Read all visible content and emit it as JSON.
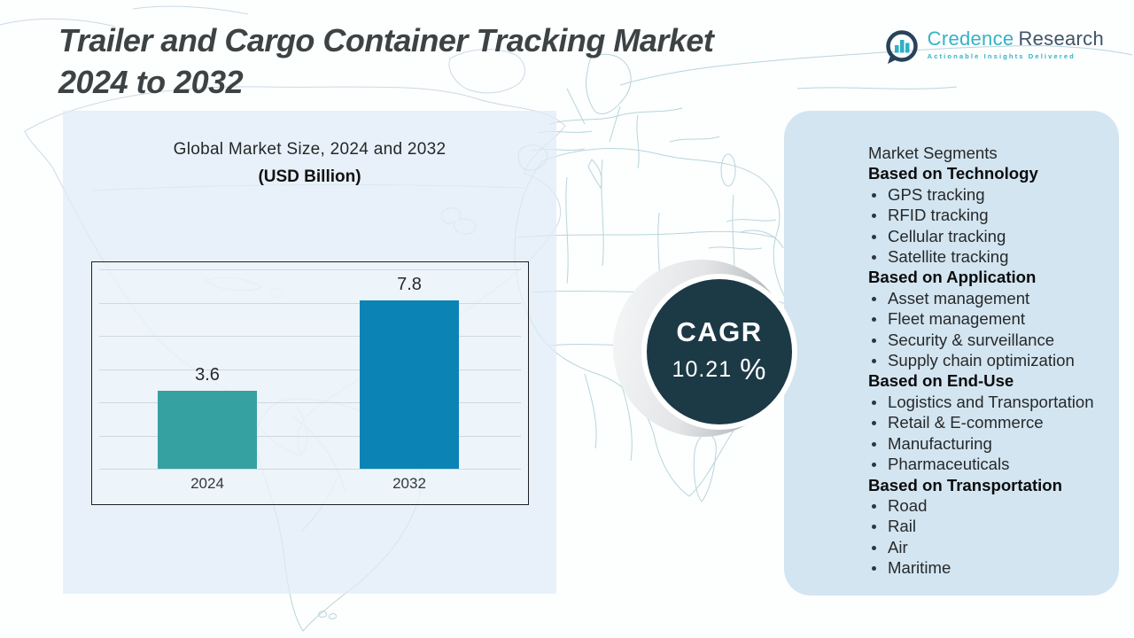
{
  "header": {
    "title_line1": "Trailer and Cargo Container Tracking Market",
    "title_line2": "2024 to 2032",
    "logo": {
      "brand_primary": "Credence",
      "brand_secondary": "Research",
      "tagline": "Actionable Insights Delivered",
      "icon": "bar-chart-circle-icon",
      "brand_primary_color": "#35b2c4",
      "brand_secondary_color": "#3f5468",
      "tagline_color": "#35b2c4",
      "icon_ring_color": "#27435a",
      "icon_bar_color": "#2fb0c4"
    }
  },
  "chart_data": {
    "type": "bar",
    "title": "Global Market Size, 2024 and 2032",
    "subtitle": "(USD Billion)",
    "categories": [
      "2024",
      "2032"
    ],
    "values": [
      3.6,
      7.8
    ],
    "value_labels": [
      "3.6",
      "7.8"
    ],
    "bar_colors": [
      "#36a1a1",
      "#0b84b5"
    ],
    "ylabel": "",
    "xlabel": "",
    "ylim": [
      0,
      8
    ],
    "grid": true,
    "legend": "none"
  },
  "cagr": {
    "label": "CAGR",
    "value": "10.21",
    "unit": "%",
    "circle_color": "#1c3946"
  },
  "segments": {
    "title": "Market Segments",
    "groups": [
      {
        "heading": "Based on Technology",
        "items": [
          "GPS tracking",
          "RFID tracking",
          "Cellular tracking",
          "Satellite tracking"
        ]
      },
      {
        "heading": "Based on Application",
        "items": [
          "Asset management",
          "Fleet management",
          "Security & surveillance",
          "Supply chain optimization"
        ]
      },
      {
        "heading": "Based on End-Use",
        "items": [
          "Logistics and Transportation",
          "Retail & E-commerce",
          "Manufacturing",
          "Pharmaceuticals"
        ]
      },
      {
        "heading": "Based on Transportation",
        "items": [
          "Road",
          "Rail",
          "Air",
          "Maritime"
        ]
      }
    ]
  }
}
